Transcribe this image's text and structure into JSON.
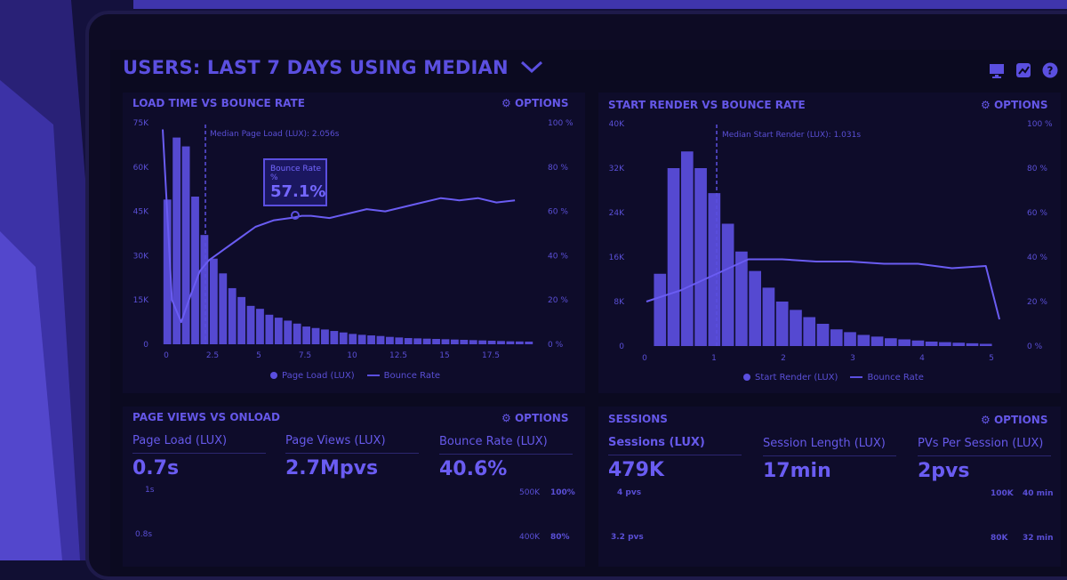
{
  "header": {
    "title": "USERS: LAST 7 DAYS USING MEDIAN"
  },
  "colors": {
    "accent": "#5b4fe0",
    "background": "#0b0a20"
  },
  "icons": [
    "monitor-icon",
    "chart-icon",
    "help-icon",
    "chevron-down-icon",
    "gear-icon"
  ],
  "panels": {
    "load_time": {
      "title": "LOAD TIME VS BOUNCE RATE",
      "options": "OPTIONS",
      "annotation": "Median Page Load (LUX): 2.056s",
      "tooltip": {
        "label": "Bounce Rate",
        "sub": "%",
        "value": "57.1%"
      },
      "left_ticks": [
        "75K",
        "60K",
        "45K",
        "30K",
        "15K",
        "0"
      ],
      "right_ticks": [
        "100 %",
        "80 %",
        "60 %",
        "40 %",
        "20 %",
        "0 %"
      ],
      "x_ticks": [
        "0",
        "2.5",
        "5",
        "7.5",
        "10",
        "12.5",
        "15",
        "17.5"
      ],
      "legend": {
        "bars": "Page Load (LUX)",
        "line": "Bounce Rate"
      }
    },
    "start_render": {
      "title": "START RENDER VS BOUNCE RATE",
      "options": "OPTIONS",
      "annotation": "Median Start Render (LUX): 1.031s",
      "left_ticks": [
        "40K",
        "32K",
        "24K",
        "16K",
        "8K",
        "0"
      ],
      "right_ticks": [
        "100 %",
        "80 %",
        "60 %",
        "40 %",
        "20 %",
        "0 %"
      ],
      "x_ticks": [
        "0",
        "1",
        "2",
        "3",
        "4",
        "5"
      ],
      "legend": {
        "bars": "Start Render (LUX)",
        "line": "Bounce Rate"
      }
    },
    "page_views": {
      "title": "PAGE VIEWS VS ONLOAD",
      "options": "OPTIONS",
      "metrics": [
        {
          "label": "Page Load (LUX)",
          "value": "0.7s"
        },
        {
          "label": "Page Views (LUX)",
          "value": "2.7Mpvs"
        },
        {
          "label": "Bounce Rate (LUX)",
          "value": "40.6%"
        }
      ],
      "left_ticks": [
        "1s",
        "0.8s"
      ],
      "right_ticks_a": [
        "500K",
        "400K"
      ],
      "right_ticks_b": [
        "100%",
        "80%"
      ]
    },
    "sessions": {
      "title": "SESSIONS",
      "options": "OPTIONS",
      "metrics": [
        {
          "label": "Sessions (LUX)",
          "value": "479K"
        },
        {
          "label": "Session Length (LUX)",
          "value": "17min"
        },
        {
          "label": "PVs Per Session (LUX)",
          "value": "2pvs"
        }
      ],
      "left_ticks": [
        "4 pvs",
        "3.2 pvs"
      ],
      "right_ticks_a": [
        "100K",
        "80K"
      ],
      "right_ticks_b": [
        "40 min",
        "32 min"
      ]
    }
  },
  "chart_data": [
    {
      "type": "bar",
      "title": "LOAD TIME VS BOUNCE RATE",
      "xlim": [
        0,
        20
      ],
      "ylim": [
        0,
        75000
      ],
      "y2lim": [
        0,
        100
      ],
      "series": [
        {
          "name": "Page Load (LUX)",
          "type": "bar",
          "bin_width": 0.5,
          "x_start": 0,
          "values": [
            49000,
            70000,
            67000,
            50000,
            37000,
            29000,
            24000,
            19000,
            16000,
            13000,
            12000,
            10000,
            9000,
            8000,
            7000,
            6000,
            5500,
            5000,
            4500,
            4000,
            3500,
            3200,
            3000,
            2800,
            2500,
            2300,
            2100,
            2000,
            1900,
            1800,
            1700,
            1600,
            1500,
            1400,
            1300,
            1200,
            1100,
            1000,
            950,
            900
          ]
        },
        {
          "name": "Bounce Rate",
          "type": "line",
          "x": [
            0,
            0.5,
            1,
            1.5,
            2,
            2.5,
            3,
            4,
            5,
            6,
            7,
            7.5,
            8,
            9,
            10,
            11,
            12,
            13,
            14,
            15,
            16,
            17,
            18,
            19
          ],
          "values": [
            97,
            20,
            10,
            22,
            33,
            38,
            41,
            47,
            53,
            56,
            57.1,
            58,
            58,
            57,
            59,
            61,
            60,
            62,
            64,
            66,
            65,
            66,
            64,
            65
          ]
        }
      ]
    },
    {
      "type": "bar",
      "title": "START RENDER VS BOUNCE RATE",
      "xlim": [
        0,
        5.2
      ],
      "ylim": [
        0,
        40000
      ],
      "y2lim": [
        0,
        100
      ],
      "series": [
        {
          "name": "Start Render (LUX)",
          "type": "bar",
          "bin_width": 0.2,
          "x_start": 0.1,
          "values": [
            13000,
            32000,
            35000,
            32000,
            27500,
            22000,
            17000,
            13500,
            10500,
            8000,
            6500,
            5200,
            4000,
            3000,
            2500,
            2000,
            1700,
            1400,
            1200,
            1000,
            800,
            700,
            600,
            500,
            400
          ]
        },
        {
          "name": "Bounce Rate",
          "type": "line",
          "x": [
            0,
            0.5,
            1,
            1.5,
            2,
            2.5,
            3,
            3.5,
            4,
            4.5,
            5,
            5.2
          ],
          "values": [
            20,
            25,
            32,
            39,
            39,
            38,
            38,
            37,
            37,
            35,
            36,
            12
          ]
        }
      ]
    }
  ]
}
